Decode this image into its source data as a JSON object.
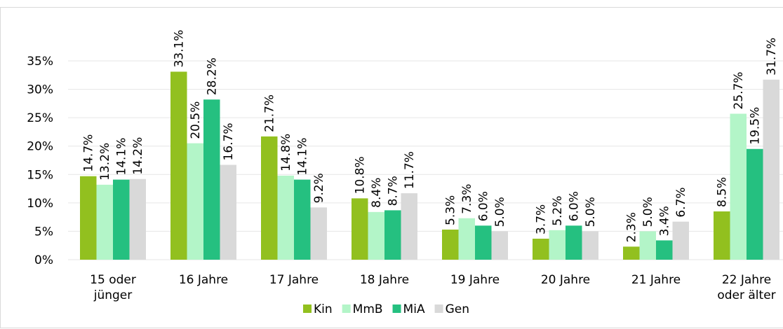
{
  "chart_data": {
    "type": "bar",
    "categories": [
      "15 oder\njünger",
      "16 Jahre",
      "17 Jahre",
      "18 Jahre",
      "19 Jahre",
      "20 Jahre",
      "21 Jahre",
      "22 Jahre\noder älter"
    ],
    "series": [
      {
        "name": "Kin",
        "color": "#92c01f",
        "values": [
          14.7,
          33.1,
          21.7,
          10.8,
          5.3,
          3.7,
          2.3,
          8.5
        ],
        "value_labels": [
          "14.7%",
          "33.1%",
          "21.7%",
          "10.8%",
          "5.3%",
          "3.7%",
          "2.3%",
          "8.5%"
        ]
      },
      {
        "name": "MmB",
        "color": "#b3f5c8",
        "values": [
          13.2,
          20.5,
          14.8,
          8.4,
          7.3,
          5.2,
          5.0,
          25.7
        ],
        "value_labels": [
          "13.2%",
          "20.5%",
          "14.8%",
          "8.4%",
          "7.3%",
          "5.2%",
          "5.0%",
          "25.7%"
        ]
      },
      {
        "name": "MiA",
        "color": "#25c080",
        "values": [
          14.1,
          28.2,
          14.1,
          8.7,
          6.0,
          6.0,
          3.4,
          19.5
        ],
        "value_labels": [
          "14.1%",
          "28.2%",
          "14.1%",
          "8.7%",
          "6.0%",
          "6.0%",
          "3.4%",
          "19.5%"
        ]
      },
      {
        "name": "Gen",
        "color": "#d9d9d9",
        "values": [
          14.2,
          16.7,
          9.2,
          11.7,
          5.0,
          5.0,
          6.7,
          31.7
        ],
        "value_labels": [
          "14.2%",
          "16.7%",
          "9.2%",
          "11.7%",
          "5.0%",
          "5.0%",
          "6.7%",
          "31.7%"
        ]
      }
    ],
    "ylim": [
      0,
      35
    ],
    "yticks": [
      {
        "value": 0,
        "label": "0%"
      },
      {
        "value": 5,
        "label": "5%"
      },
      {
        "value": 10,
        "label": "10%"
      },
      {
        "value": 15,
        "label": "15%"
      },
      {
        "value": 20,
        "label": "20%"
      },
      {
        "value": 25,
        "label": "25%"
      },
      {
        "value": 30,
        "label": "30%"
      },
      {
        "value": 35,
        "label": "35%"
      }
    ],
    "grid": true,
    "legend": "bottom"
  }
}
